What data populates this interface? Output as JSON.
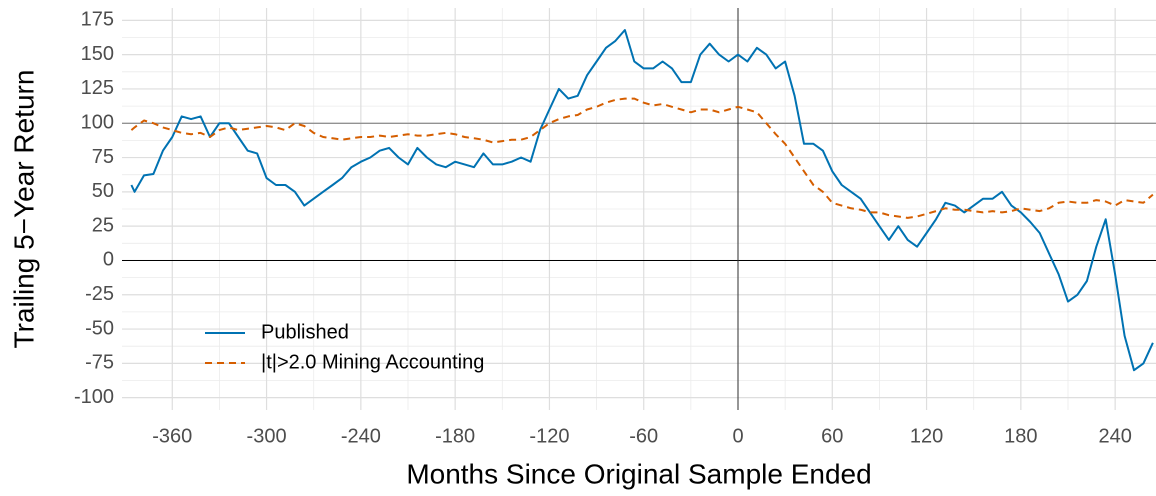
{
  "chart_data": {
    "type": "line",
    "x_label": "Months Since Original Sample Ended",
    "y_label": "Trailing 5−Year Return",
    "x": [
      -386,
      -384,
      -378,
      -372,
      -366,
      -360,
      -354,
      -348,
      -342,
      -336,
      -330,
      -324,
      -318,
      -312,
      -306,
      -300,
      -294,
      -288,
      -282,
      -276,
      -270,
      -264,
      -258,
      -252,
      -246,
      -240,
      -234,
      -228,
      -222,
      -216,
      -210,
      -204,
      -198,
      -192,
      -186,
      -180,
      -174,
      -168,
      -162,
      -156,
      -150,
      -144,
      -138,
      -132,
      -126,
      -120,
      -114,
      -108,
      -102,
      -96,
      -90,
      -84,
      -78,
      -72,
      -66,
      -60,
      -54,
      -48,
      -42,
      -36,
      -30,
      -24,
      -18,
      -12,
      -6,
      0,
      6,
      12,
      18,
      24,
      30,
      36,
      42,
      48,
      54,
      60,
      66,
      72,
      78,
      84,
      90,
      96,
      102,
      108,
      114,
      120,
      126,
      132,
      138,
      144,
      150,
      156,
      162,
      168,
      174,
      180,
      186,
      192,
      198,
      204,
      210,
      216,
      222,
      228,
      234,
      240,
      246,
      252,
      258,
      264
    ],
    "series": [
      {
        "name": "Published",
        "color": "#0072B2",
        "dash": false,
        "values": [
          55,
          50,
          62,
          63,
          80,
          90,
          105,
          103,
          105,
          90,
          100,
          100,
          90,
          80,
          78,
          60,
          55,
          55,
          50,
          40,
          45,
          50,
          55,
          60,
          68,
          72,
          75,
          80,
          82,
          75,
          70,
          82,
          75,
          70,
          68,
          72,
          70,
          68,
          78,
          70,
          70,
          72,
          75,
          72,
          95,
          110,
          125,
          118,
          120,
          135,
          145,
          155,
          160,
          168,
          145,
          140,
          140,
          145,
          140,
          130,
          130,
          150,
          158,
          150,
          145,
          150,
          145,
          155,
          150,
          140,
          145,
          120,
          85,
          85,
          80,
          65,
          55,
          50,
          45,
          35,
          25,
          15,
          25,
          15,
          10,
          20,
          30,
          42,
          40,
          35,
          40,
          45,
          45,
          50,
          40,
          35,
          28,
          20,
          5,
          -10,
          -30,
          -25,
          -15,
          10,
          30,
          -10,
          -55,
          -80,
          -75,
          -60
        ]
      },
      {
        "name": "|t|>2.0 Mining Accounting",
        "color": "#D55E00",
        "dash": true,
        "values": [
          95,
          97,
          102,
          100,
          97,
          95,
          93,
          92,
          93,
          90,
          95,
          97,
          95,
          96,
          97,
          98,
          97,
          95,
          100,
          98,
          93,
          90,
          89,
          88,
          89,
          90,
          90,
          91,
          90,
          91,
          92,
          91,
          91,
          92,
          93,
          92,
          90,
          89,
          88,
          86,
          87,
          88,
          88,
          90,
          95,
          100,
          103,
          105,
          106,
          110,
          112,
          115,
          117,
          118,
          118,
          115,
          113,
          114,
          112,
          110,
          108,
          110,
          110,
          108,
          110,
          112,
          110,
          108,
          100,
          92,
          85,
          75,
          65,
          55,
          50,
          42,
          40,
          38,
          37,
          35,
          35,
          33,
          32,
          31,
          32,
          34,
          36,
          38,
          37,
          37,
          36,
          35,
          36,
          35,
          36,
          38,
          37,
          36,
          38,
          42,
          43,
          42,
          42,
          44,
          43,
          40,
          44,
          43,
          42,
          48
        ]
      }
    ],
    "xlim": [
      -392,
      266
    ],
    "ylim": [
      -109,
      184
    ],
    "xticks": [
      -360,
      -300,
      -240,
      -180,
      -120,
      -60,
      0,
      60,
      120,
      180,
      240
    ],
    "yticks": [
      -100,
      -75,
      -50,
      -25,
      0,
      25,
      50,
      75,
      100,
      125,
      150,
      175
    ],
    "hlines": [
      0,
      100
    ],
    "vlines": [
      0
    ],
    "grid": true,
    "legend": "bottom-left"
  }
}
